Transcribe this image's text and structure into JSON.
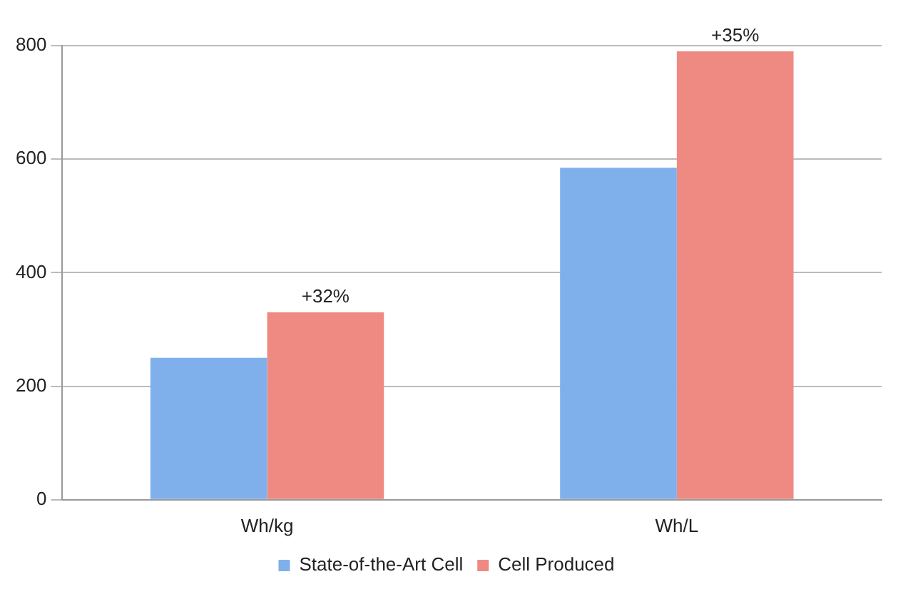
{
  "chart_data": {
    "type": "bar",
    "categories": [
      "Wh/kg",
      "Wh/L"
    ],
    "series": [
      {
        "name": "State-of-the-Art Cell",
        "color": "#7fb0ec",
        "values": [
          250,
          585
        ]
      },
      {
        "name": "Cell Produced",
        "color": "#ee8a82",
        "values": [
          330,
          790
        ]
      }
    ],
    "ylim": [
      0,
      800
    ],
    "yticks": [
      0,
      200,
      400,
      600,
      800
    ],
    "grid": "y",
    "legend": "bottom",
    "annotations": [
      {
        "text": "+32%",
        "x": "Wh/kg",
        "y": 330
      },
      {
        "text": "+35%",
        "x": "Wh/L",
        "y": 790
      }
    ]
  }
}
